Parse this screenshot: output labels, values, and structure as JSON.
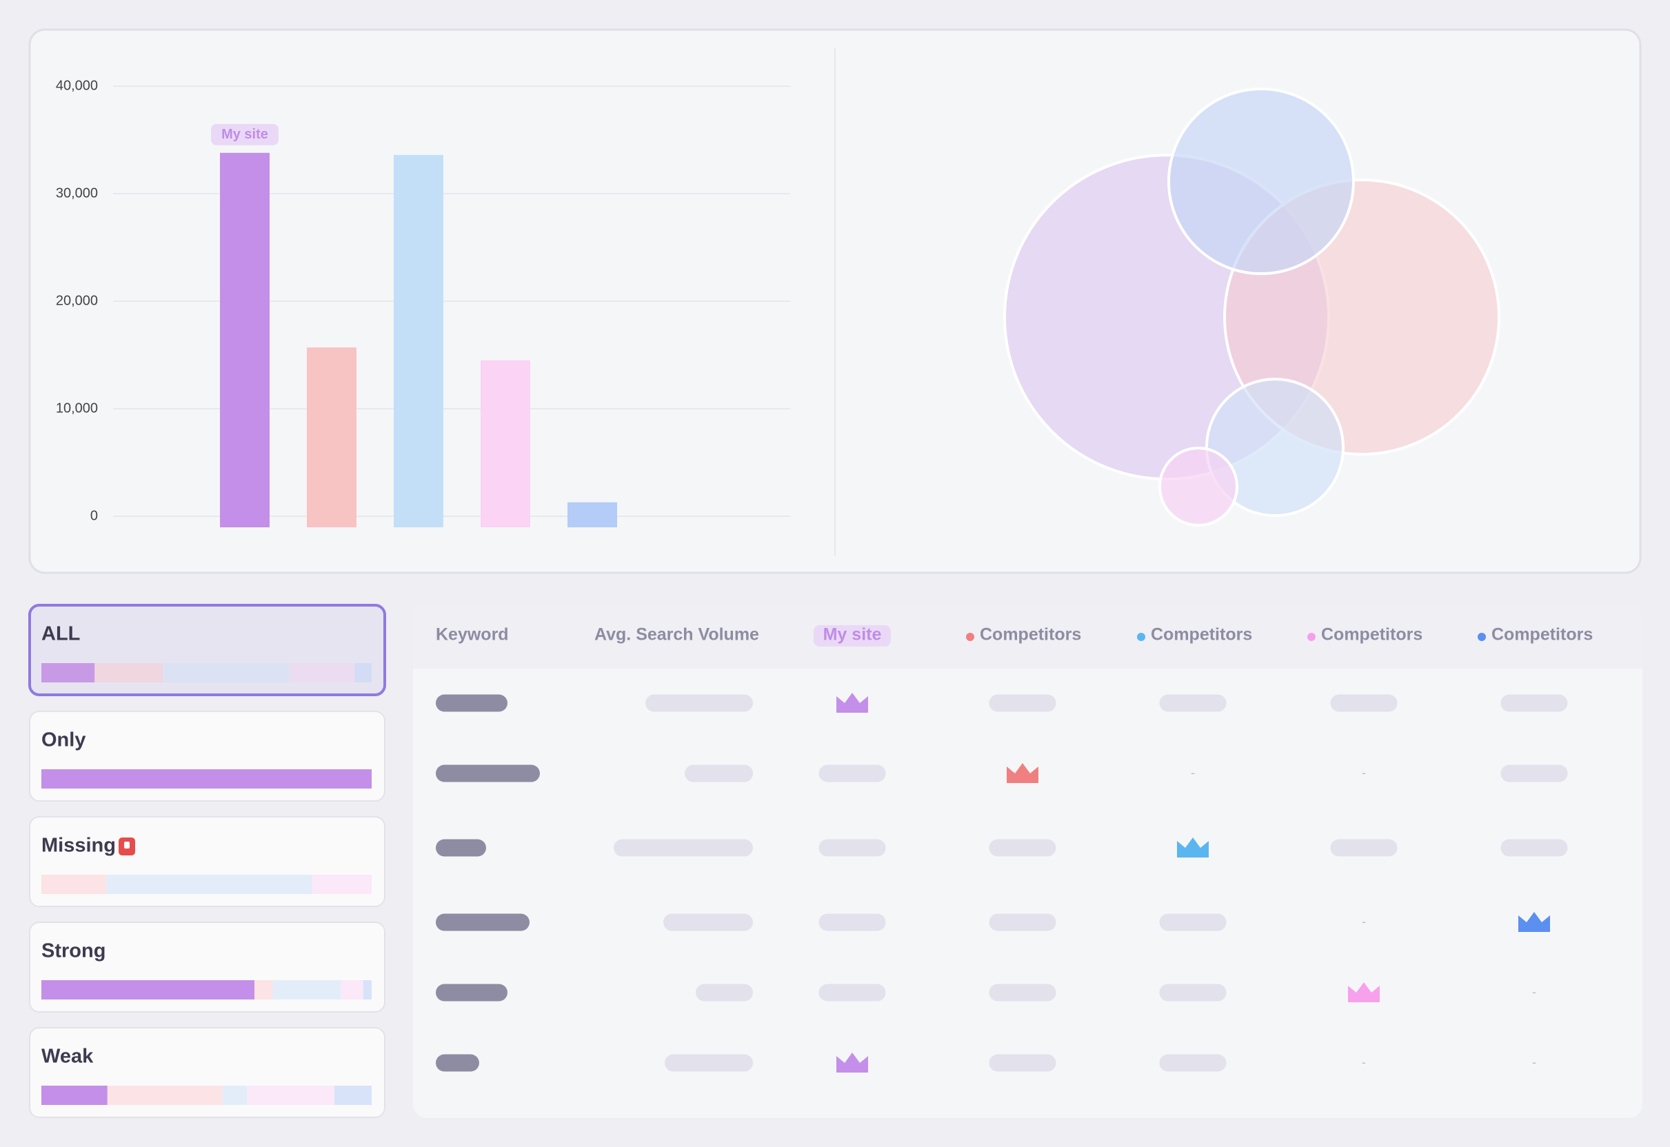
{
  "chart_data": {
    "type": "bar",
    "categories": [
      null,
      null,
      null,
      null,
      null
    ],
    "series": [
      {
        "colors": [
          "#c48fe9",
          "#f8c3c3",
          "#c3dff8",
          "#fad3f5",
          "#b3ccf8"
        ],
        "values": [
          33800,
          15700,
          33600,
          14500,
          1300
        ]
      }
    ],
    "annotation": "My site",
    "ylim": [
      0,
      40000
    ],
    "yticks": [
      0,
      {
        "value": 10000,
        "label": "10,000"
      },
      {
        "value": 20000,
        "label": "20,000"
      },
      {
        "value": 30000,
        "label": "30,000"
      },
      {
        "value": 40000,
        "label": "40,000"
      }
    ],
    "grid": true
  },
  "filters": [
    "ALL",
    "Only",
    "Missing",
    "Strong",
    "Weak"
  ],
  "table": {
    "headers": [
      "Keyword",
      "Avg. Search Volume",
      "My site",
      "Competitors",
      "Competitors",
      "Competitors",
      "Competitors"
    ],
    "placeholder": "-"
  }
}
